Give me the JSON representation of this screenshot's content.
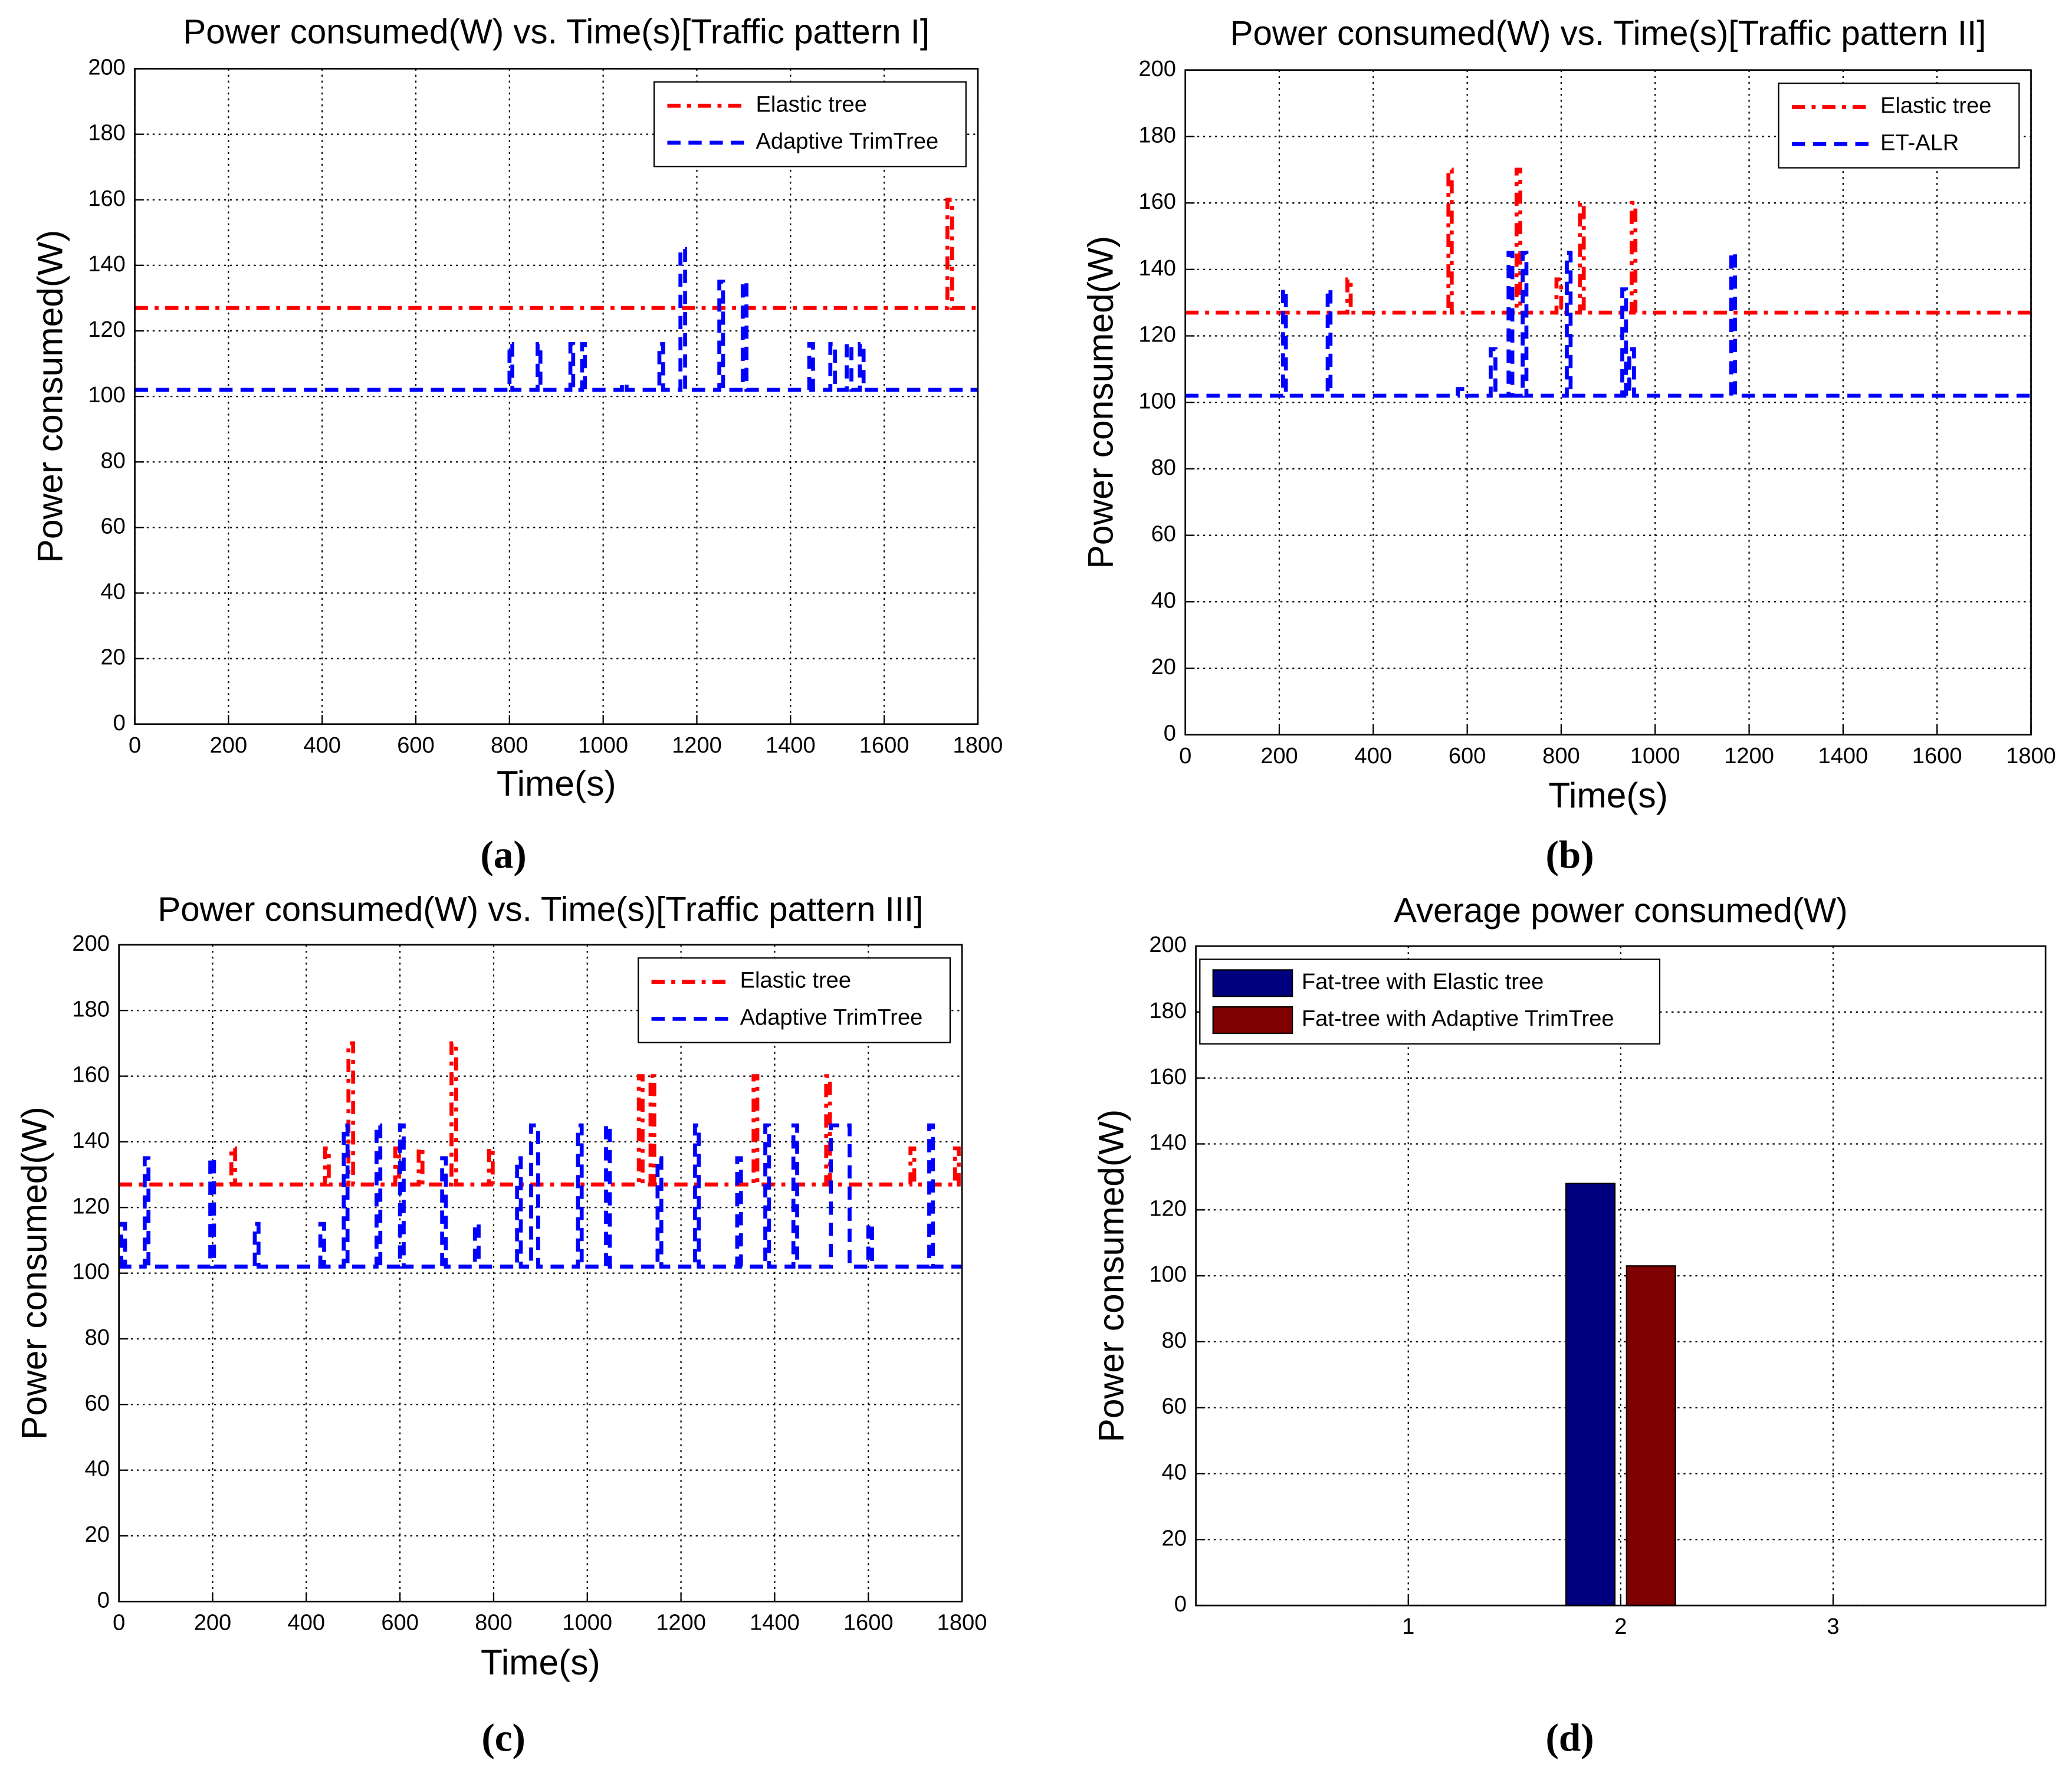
{
  "chart_data": [
    {
      "type": "line",
      "label": "(a)",
      "title": "Power consumed(W) vs. Time(s)[Traffic pattern I]",
      "xlabel": "Time(s)",
      "ylabel": "Power consumed(W)",
      "xlim": [
        0,
        1800
      ],
      "xticks": [
        0,
        200,
        400,
        600,
        800,
        1000,
        1200,
        1400,
        1600,
        1800
      ],
      "ylim": [
        0,
        200
      ],
      "yticks": [
        0,
        20,
        40,
        60,
        80,
        100,
        120,
        140,
        160,
        180,
        200
      ],
      "grid": true,
      "legend": "upper right",
      "series": [
        {
          "name": "Elastic tree",
          "color": "#ff0000",
          "style": "dash-dot",
          "x": [
            0,
            1735,
            1735,
            1745,
            1745,
            1800
          ],
          "values": [
            127,
            127,
            160,
            160,
            127,
            127
          ]
        },
        {
          "name": "Adaptive TrimTree",
          "color": "#0000ff",
          "style": "dash",
          "x": [
            0,
            800,
            800,
            806,
            806,
            860,
            860,
            866,
            866,
            930,
            930,
            936,
            936,
            955,
            955,
            961,
            961,
            1040,
            1040,
            1050,
            1050,
            1120,
            1120,
            1128,
            1128,
            1165,
            1165,
            1175,
            1175,
            1248,
            1248,
            1256,
            1256,
            1298,
            1298,
            1306,
            1306,
            1440,
            1440,
            1448,
            1448,
            1485,
            1485,
            1495,
            1495,
            1520,
            1520,
            1530,
            1530,
            1548,
            1548,
            1556,
            1556,
            1800
          ],
          "values": [
            102,
            102,
            116,
            116,
            102,
            102,
            116,
            116,
            102,
            102,
            116,
            116,
            102,
            102,
            116,
            116,
            102,
            102,
            104,
            104,
            102,
            102,
            116,
            116,
            102,
            102,
            145,
            145,
            102,
            102,
            135,
            135,
            102,
            102,
            135,
            135,
            102,
            102,
            116,
            116,
            102,
            102,
            116,
            116,
            102,
            102,
            116,
            116,
            102,
            102,
            116,
            116,
            102,
            102
          ]
        }
      ]
    },
    {
      "type": "line",
      "label": "(b)",
      "title": "Power consumed(W) vs. Time(s)[Traffic pattern II]",
      "xlabel": "Time(s)",
      "ylabel": "Power consumed(W)",
      "xlim": [
        0,
        1800
      ],
      "xticks": [
        0,
        200,
        400,
        600,
        800,
        1000,
        1200,
        1400,
        1600,
        1800
      ],
      "ylim": [
        0,
        200
      ],
      "yticks": [
        0,
        20,
        40,
        60,
        80,
        100,
        120,
        140,
        160,
        180,
        200
      ],
      "grid": true,
      "legend": "upper right",
      "series": [
        {
          "name": "Elastic tree",
          "color": "#ff0000",
          "style": "dash-dot",
          "x": [
            0,
            345,
            345,
            352,
            352,
            560,
            560,
            567,
            567,
            705,
            705,
            713,
            713,
            790,
            790,
            800,
            800,
            840,
            840,
            848,
            848,
            950,
            950,
            958,
            958,
            1800
          ],
          "values": [
            127,
            127,
            137,
            137,
            127,
            127,
            170,
            170,
            127,
            127,
            170,
            170,
            127,
            127,
            137,
            137,
            127,
            127,
            160,
            160,
            127,
            127,
            160,
            160,
            127,
            127
          ]
        },
        {
          "name": "ET-ALR",
          "color": "#0000ff",
          "style": "dash",
          "x": [
            0,
            208,
            208,
            214,
            214,
            303,
            303,
            309,
            309,
            580,
            580,
            600,
            600,
            650,
            650,
            660,
            660,
            688,
            688,
            696,
            696,
            718,
            718,
            726,
            726,
            812,
            812,
            820,
            820,
            930,
            930,
            938,
            938,
            945,
            945,
            955,
            955,
            1162,
            1162,
            1170,
            1170,
            1800
          ],
          "values": [
            102,
            102,
            134,
            134,
            102,
            102,
            134,
            134,
            102,
            102,
            104,
            104,
            102,
            102,
            116,
            116,
            102,
            102,
            145,
            145,
            102,
            102,
            145,
            145,
            102,
            102,
            145,
            145,
            102,
            102,
            134,
            134,
            102,
            102,
            116,
            116,
            102,
            102,
            145,
            145,
            102,
            102
          ]
        }
      ]
    },
    {
      "type": "line",
      "label": "(c)",
      "title": "Power consumed(W) vs. Time(s)[Traffic pattern III]",
      "xlabel": "Time(s)",
      "ylabel": "Power consumed(W)",
      "xlim": [
        0,
        1800
      ],
      "xticks": [
        0,
        200,
        400,
        600,
        800,
        1000,
        1200,
        1400,
        1600,
        1800
      ],
      "ylim": [
        0,
        200
      ],
      "yticks": [
        0,
        20,
        40,
        60,
        80,
        100,
        120,
        140,
        160,
        180,
        200
      ],
      "grid": true,
      "legend": "upper right",
      "series": [
        {
          "name": "Elastic tree",
          "color": "#ff0000",
          "style": "dash-dot",
          "x": [
            0,
            240,
            240,
            248,
            248,
            440,
            440,
            448,
            448,
            490,
            490,
            500,
            500,
            590,
            590,
            598,
            598,
            640,
            640,
            648,
            648,
            710,
            710,
            720,
            720,
            790,
            790,
            798,
            798,
            1110,
            1110,
            1118,
            1118,
            1135,
            1135,
            1143,
            1143,
            1355,
            1355,
            1363,
            1363,
            1510,
            1510,
            1518,
            1518,
            1690,
            1690,
            1698,
            1698,
            1785,
            1785,
            1793,
            1793,
            1800
          ],
          "values": [
            127,
            127,
            138,
            138,
            127,
            127,
            138,
            138,
            127,
            127,
            170,
            170,
            127,
            127,
            138,
            138,
            127,
            127,
            138,
            138,
            127,
            127,
            170,
            170,
            127,
            127,
            138,
            138,
            127,
            127,
            160,
            160,
            127,
            127,
            160,
            160,
            127,
            127,
            160,
            160,
            127,
            127,
            160,
            160,
            127,
            127,
            138,
            138,
            127,
            127,
            138,
            138,
            127,
            127
          ]
        },
        {
          "name": "Adaptive TrimTree",
          "color": "#0000ff",
          "style": "dash",
          "x": [
            0,
            5,
            5,
            13,
            13,
            55,
            55,
            63,
            63,
            195,
            195,
            203,
            203,
            290,
            290,
            298,
            298,
            430,
            430,
            438,
            438,
            480,
            480,
            488,
            488,
            550,
            550,
            558,
            558,
            600,
            600,
            608,
            608,
            690,
            690,
            698,
            698,
            760,
            760,
            768,
            768,
            850,
            850,
            858,
            858,
            880,
            880,
            895,
            895,
            980,
            980,
            988,
            988,
            1040,
            1040,
            1048,
            1048,
            1150,
            1150,
            1158,
            1158,
            1230,
            1230,
            1238,
            1238,
            1320,
            1320,
            1328,
            1328,
            1380,
            1380,
            1388,
            1388,
            1440,
            1440,
            1448,
            1448,
            1520,
            1520,
            1560,
            1560,
            1600,
            1600,
            1608,
            1608,
            1730,
            1730,
            1738,
            1738,
            1800
          ],
          "values": [
            102,
            102,
            115,
            115,
            102,
            102,
            135,
            135,
            102,
            102,
            135,
            135,
            102,
            102,
            115,
            115,
            102,
            102,
            115,
            115,
            102,
            102,
            145,
            145,
            102,
            102,
            145,
            145,
            102,
            102,
            145,
            145,
            102,
            102,
            135,
            135,
            102,
            102,
            115,
            115,
            102,
            102,
            135,
            135,
            102,
            102,
            145,
            145,
            102,
            102,
            145,
            145,
            102,
            102,
            145,
            145,
            102,
            102,
            135,
            135,
            102,
            102,
            145,
            145,
            102,
            102,
            135,
            135,
            102,
            102,
            145,
            145,
            102,
            102,
            145,
            145,
            102,
            102,
            145,
            145,
            102,
            102,
            115,
            115,
            102,
            102,
            145,
            145,
            102,
            102
          ]
        }
      ]
    },
    {
      "type": "bar",
      "label": "(d)",
      "title": "Average power consumed(W)",
      "ylabel": "Power consumed(W)",
      "x": [
        1,
        2,
        3
      ],
      "xlim": [
        0,
        4
      ],
      "xticks": [
        1,
        2,
        3
      ],
      "ylim": [
        0,
        200
      ],
      "yticks": [
        0,
        20,
        40,
        60,
        80,
        100,
        120,
        140,
        160,
        180,
        200
      ],
      "grid": true,
      "legend": "upper left",
      "series": [
        {
          "name": "Fat-tree with Elastic tree",
          "color": "#00007f",
          "values": [
            null,
            128,
            null
          ]
        },
        {
          "name": "Fat-tree with Adaptive TrimTree",
          "color": "#7f0000",
          "values": [
            null,
            103,
            null
          ]
        }
      ]
    }
  ]
}
